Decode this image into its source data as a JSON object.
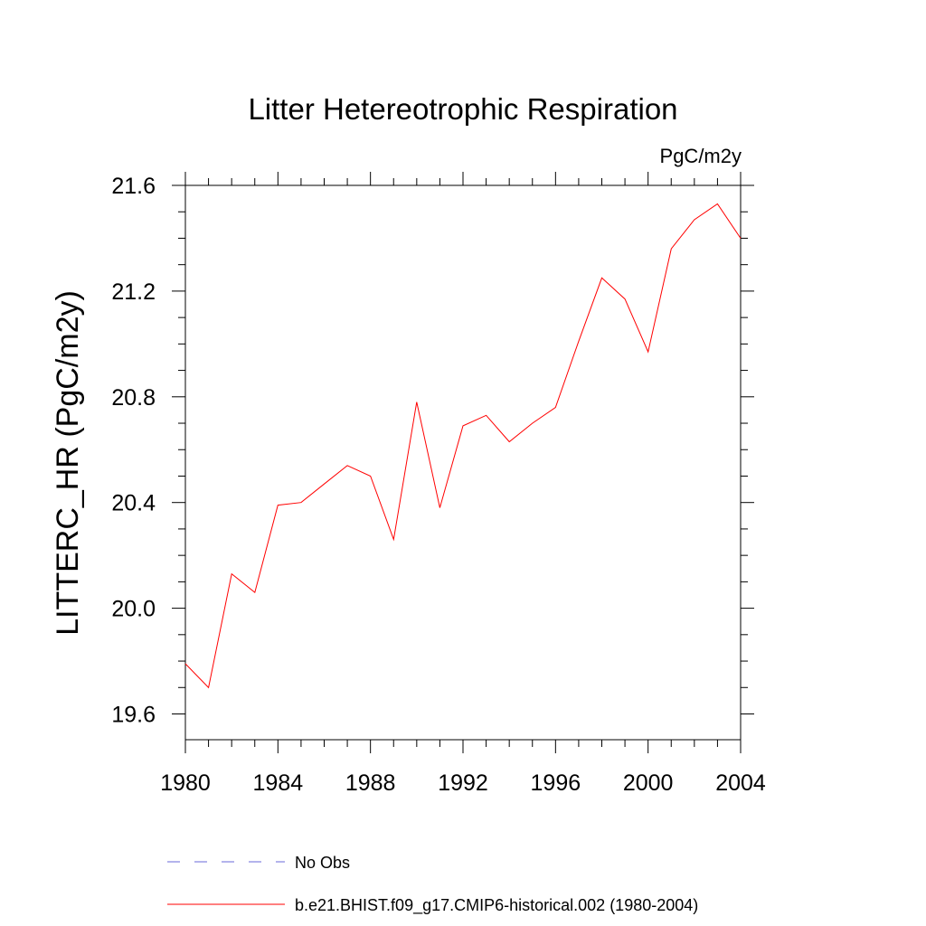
{
  "chart_data": {
    "type": "line",
    "title": "Litter Hetereotrophic Respiration",
    "units_label": "PgC/m2y",
    "ylabel": "LITTERC_HR  (PgC/m2y)",
    "xlabel": "",
    "xlim": [
      1980,
      2004
    ],
    "ylim": [
      19.5,
      21.65
    ],
    "x_ticks": [
      "1980",
      "1984",
      "1988",
      "1992",
      "1996",
      "2000",
      "2004"
    ],
    "y_ticks": [
      "19.6",
      "20.0",
      "20.4",
      "20.8",
      "21.2",
      "21.6"
    ],
    "grid": false,
    "x": [
      1980,
      1981,
      1982,
      1983,
      1984,
      1985,
      1986,
      1987,
      1988,
      1989,
      1990,
      1991,
      1992,
      1993,
      1994,
      1995,
      1996,
      1997,
      1998,
      1999,
      2000,
      2001,
      2002,
      2003,
      2004
    ],
    "series": [
      {
        "name": "b.e21.BHIST.f09_g17.CMIP6-historical.002 (1980-2004)",
        "color": "#ff0000",
        "style": "solid",
        "values": [
          19.79,
          19.7,
          20.13,
          20.06,
          20.39,
          20.4,
          20.47,
          20.54,
          20.5,
          20.26,
          20.78,
          20.38,
          20.69,
          20.73,
          20.63,
          20.7,
          20.76,
          21.01,
          21.25,
          21.17,
          20.97,
          21.36,
          21.47,
          21.53,
          21.4
        ]
      }
    ],
    "legend": {
      "placement": "bottom",
      "entries": [
        {
          "label": "No Obs",
          "color": "#6a6ad8",
          "style": "dashed"
        },
        {
          "label": "b.e21.BHIST.f09_g17.CMIP6-historical.002 (1980-2004)",
          "color": "#ff0000",
          "style": "solid"
        }
      ]
    }
  }
}
